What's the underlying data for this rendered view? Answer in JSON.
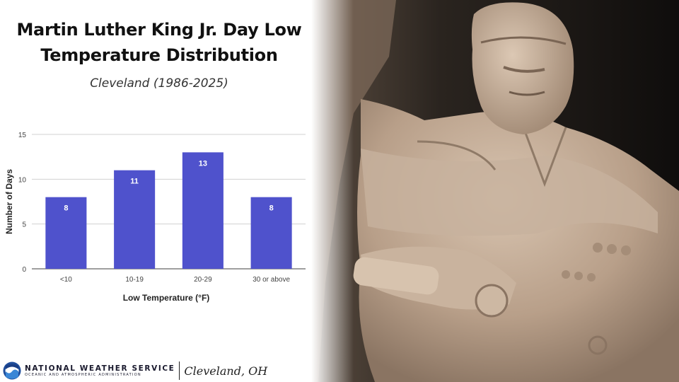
{
  "header": {
    "title_line1": "Martin Luther King Jr. Day Low",
    "title_line2": "Temperature Distribution",
    "subtitle": "Cleveland (1986-2025)"
  },
  "chart_data": {
    "type": "bar",
    "categories": [
      "<10",
      "10-19",
      "20-29",
      "30 or above"
    ],
    "values": [
      8,
      11,
      13,
      8
    ],
    "xlabel": "Low Temperature (°F)",
    "ylabel": "Number of Days",
    "ylim": [
      0,
      15
    ],
    "yticks": [
      0,
      5,
      10,
      15
    ],
    "grid": true,
    "bar_color": "#4f52cc",
    "data_labels": true
  },
  "footer": {
    "org_name": "NATIONAL WEATHER SERVICE",
    "org_sub": "OCEANIC AND ATMOSPHERIC ADMINISTRATION",
    "office": "Cleveland, OH"
  },
  "photo": {
    "subject": "statue-photo",
    "palette": [
      "#141210",
      "#8a7665",
      "#c9b4a0"
    ]
  }
}
